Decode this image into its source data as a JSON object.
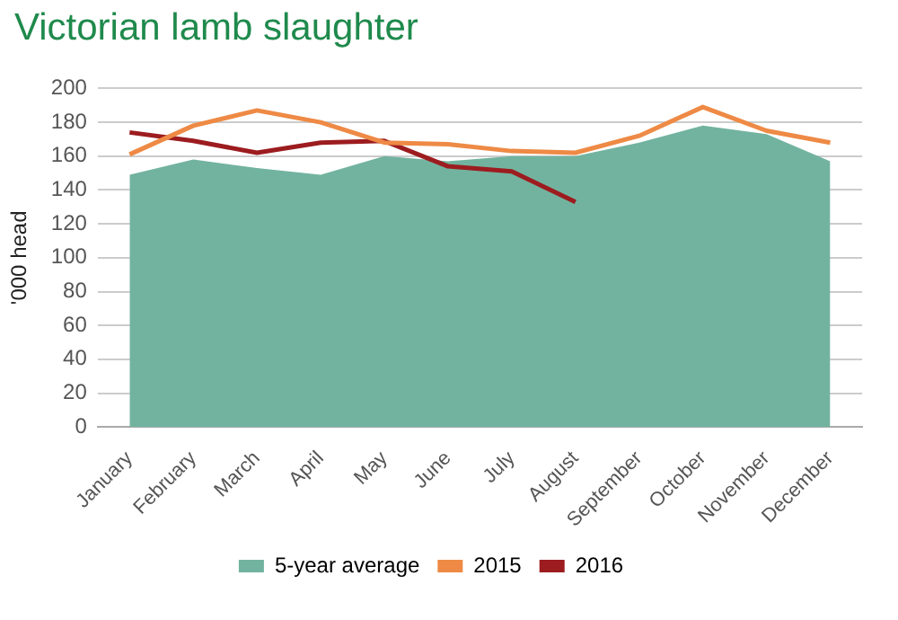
{
  "chart_data": {
    "type": "line",
    "title": "Victorian lamb slaughter",
    "ylabel": "'000 head",
    "categories": [
      "January",
      "February",
      "March",
      "April",
      "May",
      "June",
      "July",
      "August",
      "September",
      "October",
      "November",
      "December"
    ],
    "series": [
      {
        "name": "5-year average",
        "type": "area",
        "color": "#72b39f",
        "values": [
          149,
          158,
          153,
          149,
          160,
          157,
          160,
          160,
          168,
          178,
          173,
          157
        ]
      },
      {
        "name": "2015",
        "color": "#ee8a45",
        "values": [
          161,
          178,
          187,
          180,
          168,
          167,
          163,
          162,
          172,
          189,
          175,
          168
        ]
      },
      {
        "name": "2016",
        "color": "#9c1c1f",
        "values": [
          174,
          169,
          162,
          168,
          169,
          154,
          151,
          133,
          null,
          null,
          null,
          null
        ]
      }
    ],
    "ylim": [
      0,
      200
    ],
    "yticks": [
      0,
      20,
      40,
      60,
      80,
      100,
      120,
      140,
      160,
      180,
      200
    ],
    "grid": "y",
    "legend": "bottom",
    "marker": "none",
    "line_style": "solid"
  }
}
